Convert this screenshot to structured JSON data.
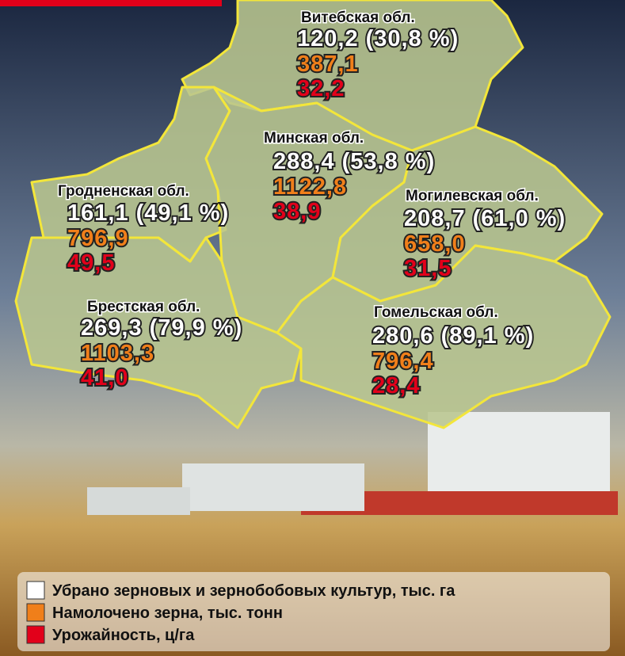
{
  "regions": [
    {
      "name": "Витебская обл.",
      "area": "120,2 (30,8 %)",
      "grain": "387,1",
      "yield": "32,2"
    },
    {
      "name": "Минская обл.",
      "area": "288,4 (53,8 %)",
      "grain": "1122,8",
      "yield": "38,9"
    },
    {
      "name": "Гродненская обл.",
      "area": "161,1 (49,1 %)",
      "grain": "796,9",
      "yield": "49,5"
    },
    {
      "name": "Могилевская обл.",
      "area": "208,7 (61,0 %)",
      "grain": "658,0",
      "yield": "31,5"
    },
    {
      "name": "Брестская обл.",
      "area": "269,3 (79,9 %)",
      "grain": "1103,3",
      "yield": "41,0"
    },
    {
      "name": "Гомельская обл.",
      "area": "280,6 (89,1 %)",
      "grain": "796,4",
      "yield": "28,4"
    }
  ],
  "legend": [
    "Убрано зерновых и зернобобовых культур, тыс. га",
    "Намолочено зерна, тыс. тонн",
    "Урожайность, ц/га"
  ]
}
